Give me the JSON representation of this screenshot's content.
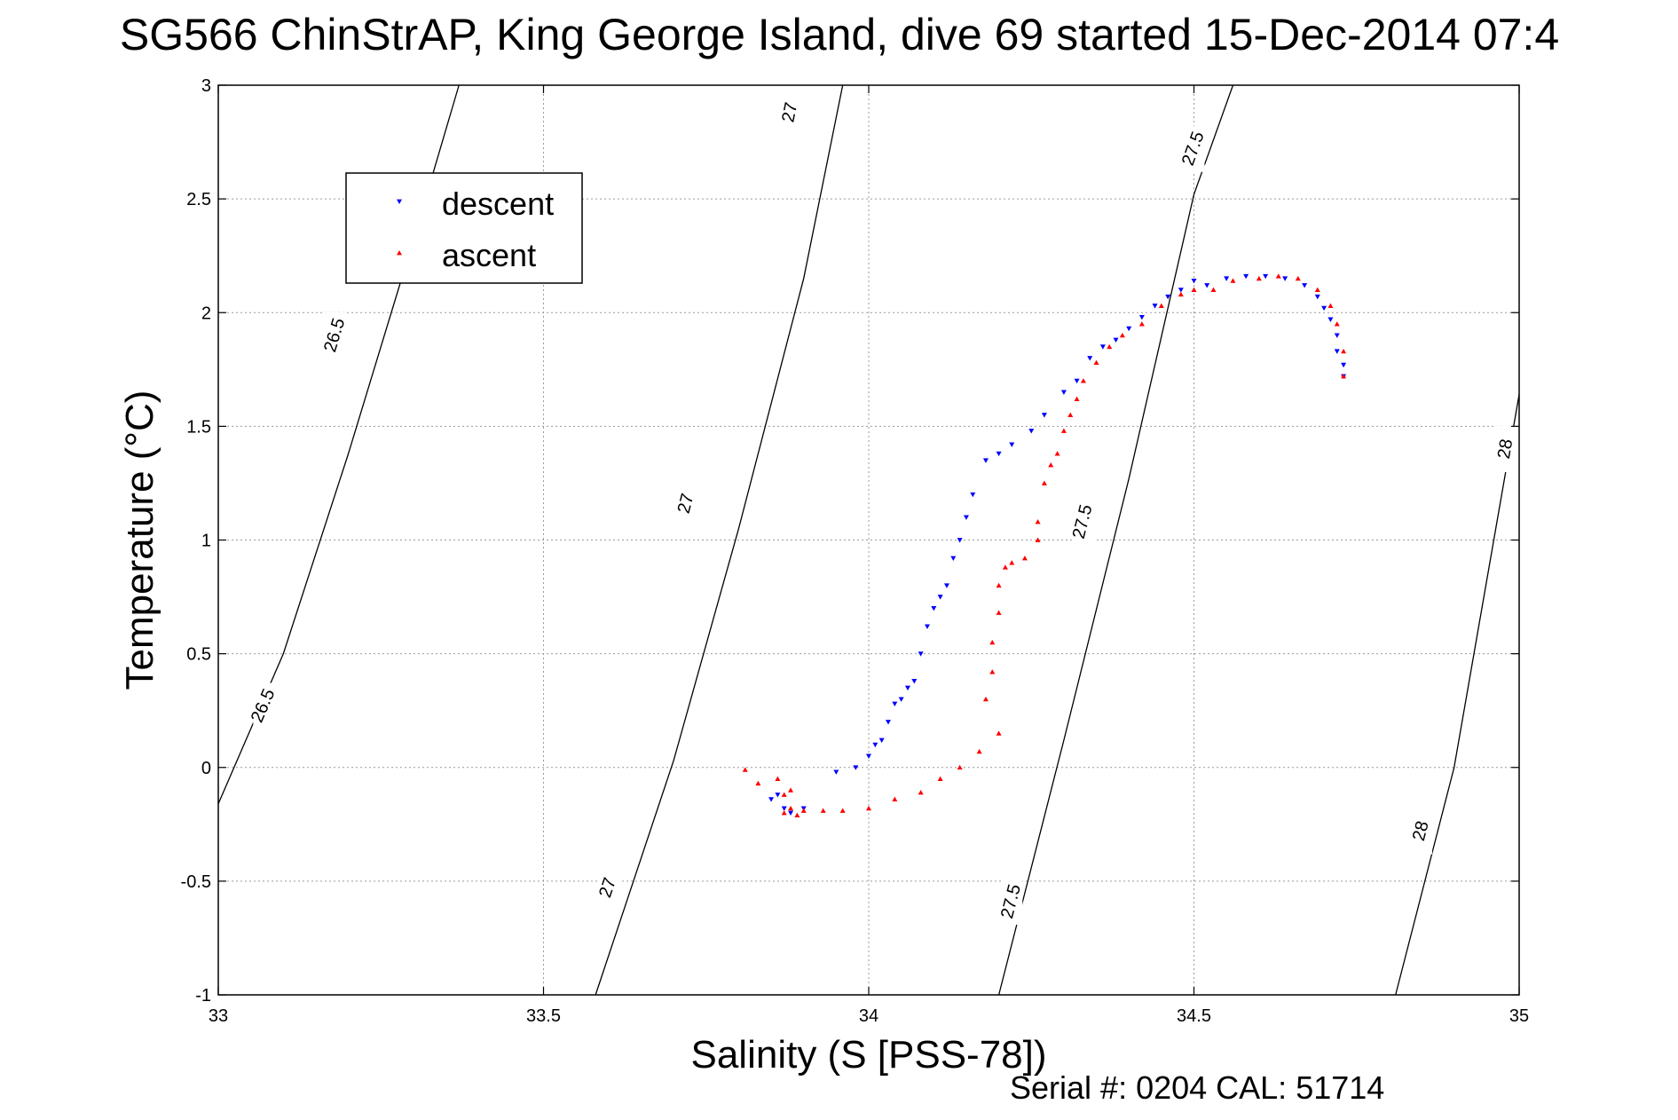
{
  "chart_data": {
    "type": "scatter",
    "title": "SG566 ChinStrAP, King George Island, dive 69 started 15-Dec-2014 07:4",
    "xlabel": "Salinity (S [PSS-78])",
    "ylabel": "Temperature (°C)",
    "xlim": [
      33,
      35
    ],
    "ylim": [
      -1,
      3
    ],
    "xticks": [
      33,
      33.5,
      34,
      34.5,
      35
    ],
    "xtick_labels": [
      "33",
      "33.5",
      "34",
      "34.5",
      "35"
    ],
    "yticks": [
      -1,
      -0.5,
      0,
      0.5,
      1,
      1.5,
      2,
      2.5,
      3
    ],
    "ytick_labels": [
      "-1",
      "-0.5",
      "0",
      "0.5",
      "1",
      "1.5",
      "2",
      "2.5",
      "3"
    ],
    "grid": true,
    "legend_position": "top-left",
    "footer": "Serial #: 0204  CAL: 51714",
    "isopycnals": [
      {
        "sigma": 26.5,
        "points": [
          [
            33.0,
            -0.16
          ],
          [
            33.1,
            0.5
          ],
          [
            33.2,
            1.38
          ],
          [
            33.3,
            2.32
          ],
          [
            33.37,
            3.0
          ]
        ],
        "labels": [
          {
            "text": "26.5",
            "x": 33.07,
            "y": 0.27
          },
          {
            "text": "26.5",
            "x": 33.18,
            "y": 1.9
          }
        ]
      },
      {
        "sigma": 27.0,
        "points": [
          [
            33.58,
            -1.0
          ],
          [
            33.7,
            0.03
          ],
          [
            33.8,
            1.05
          ],
          [
            33.9,
            2.15
          ],
          [
            33.96,
            3.0
          ]
        ],
        "labels": [
          {
            "text": "27",
            "x": 33.6,
            "y": -0.53
          },
          {
            "text": "27",
            "x": 33.72,
            "y": 1.16
          },
          {
            "text": "27",
            "x": 33.88,
            "y": 2.88
          }
        ]
      },
      {
        "sigma": 27.5,
        "points": [
          [
            34.2,
            -1.0
          ],
          [
            34.3,
            0.12
          ],
          [
            34.4,
            1.27
          ],
          [
            34.5,
            2.52
          ],
          [
            34.56,
            3.0
          ]
        ],
        "labels": [
          {
            "text": "27.5",
            "x": 34.22,
            "y": -0.59
          },
          {
            "text": "27.5",
            "x": 34.33,
            "y": 1.08
          },
          {
            "text": "27.5",
            "x": 34.5,
            "y": 2.72
          }
        ]
      },
      {
        "sigma": 28.0,
        "points": [
          [
            34.81,
            -1.0
          ],
          [
            34.9,
            0.0
          ],
          [
            35.0,
            1.64
          ]
        ],
        "labels": [
          {
            "text": "28",
            "x": 34.85,
            "y": -0.28
          },
          {
            "text": "28",
            "x": 34.98,
            "y": 1.4
          }
        ]
      }
    ],
    "series": [
      {
        "name": "descent",
        "color": "#0000ff",
        "marker": "triangle-down",
        "x": [
          33.85,
          33.86,
          33.87,
          33.88,
          33.9,
          33.95,
          33.98,
          34.0,
          34.01,
          34.02,
          34.03,
          34.04,
          34.05,
          34.06,
          34.07,
          34.08,
          34.09,
          34.1,
          34.11,
          34.12,
          34.13,
          34.14,
          34.15,
          34.16,
          34.18,
          34.2,
          34.22,
          34.25,
          34.27,
          34.3,
          34.32,
          34.34,
          34.36,
          34.38,
          34.4,
          34.42,
          34.44,
          34.46,
          34.48,
          34.5,
          34.52,
          34.55,
          34.58,
          34.61,
          34.64,
          34.67,
          34.69,
          34.7,
          34.71,
          34.72,
          34.72,
          34.73,
          34.73
        ],
        "y": [
          -0.14,
          -0.12,
          -0.18,
          -0.2,
          -0.18,
          -0.02,
          0.0,
          0.05,
          0.1,
          0.12,
          0.2,
          0.28,
          0.3,
          0.35,
          0.38,
          0.5,
          0.62,
          0.7,
          0.75,
          0.8,
          0.92,
          1.0,
          1.1,
          1.2,
          1.35,
          1.38,
          1.42,
          1.48,
          1.55,
          1.65,
          1.7,
          1.8,
          1.85,
          1.88,
          1.93,
          1.98,
          2.03,
          2.07,
          2.1,
          2.14,
          2.12,
          2.15,
          2.16,
          2.16,
          2.15,
          2.12,
          2.07,
          2.02,
          1.97,
          1.9,
          1.83,
          1.77,
          1.72
        ]
      },
      {
        "name": "ascent",
        "color": "#ff0000",
        "marker": "triangle-up",
        "x": [
          33.81,
          33.83,
          33.86,
          33.87,
          33.87,
          33.88,
          33.88,
          33.89,
          33.9,
          33.93,
          33.96,
          34.0,
          34.04,
          34.08,
          34.11,
          34.14,
          34.17,
          34.2,
          34.18,
          34.19,
          34.19,
          34.2,
          34.2,
          34.21,
          34.22,
          34.24,
          34.26,
          34.26,
          34.27,
          34.28,
          34.29,
          34.3,
          34.31,
          34.32,
          34.33,
          34.35,
          34.37,
          34.39,
          34.42,
          34.45,
          34.48,
          34.5,
          34.53,
          34.56,
          34.6,
          34.63,
          34.66,
          34.69,
          34.71,
          34.72,
          34.73,
          34.73
        ],
        "y": [
          -0.01,
          -0.07,
          -0.05,
          -0.12,
          -0.2,
          -0.1,
          -0.18,
          -0.21,
          -0.19,
          -0.19,
          -0.19,
          -0.18,
          -0.14,
          -0.11,
          -0.05,
          0.0,
          0.07,
          0.15,
          0.3,
          0.42,
          0.55,
          0.68,
          0.8,
          0.88,
          0.9,
          0.92,
          1.0,
          1.08,
          1.25,
          1.33,
          1.38,
          1.48,
          1.55,
          1.62,
          1.7,
          1.78,
          1.85,
          1.9,
          1.95,
          2.03,
          2.08,
          2.1,
          2.1,
          2.14,
          2.15,
          2.16,
          2.15,
          2.1,
          2.03,
          1.95,
          1.83,
          1.72
        ]
      }
    ]
  }
}
